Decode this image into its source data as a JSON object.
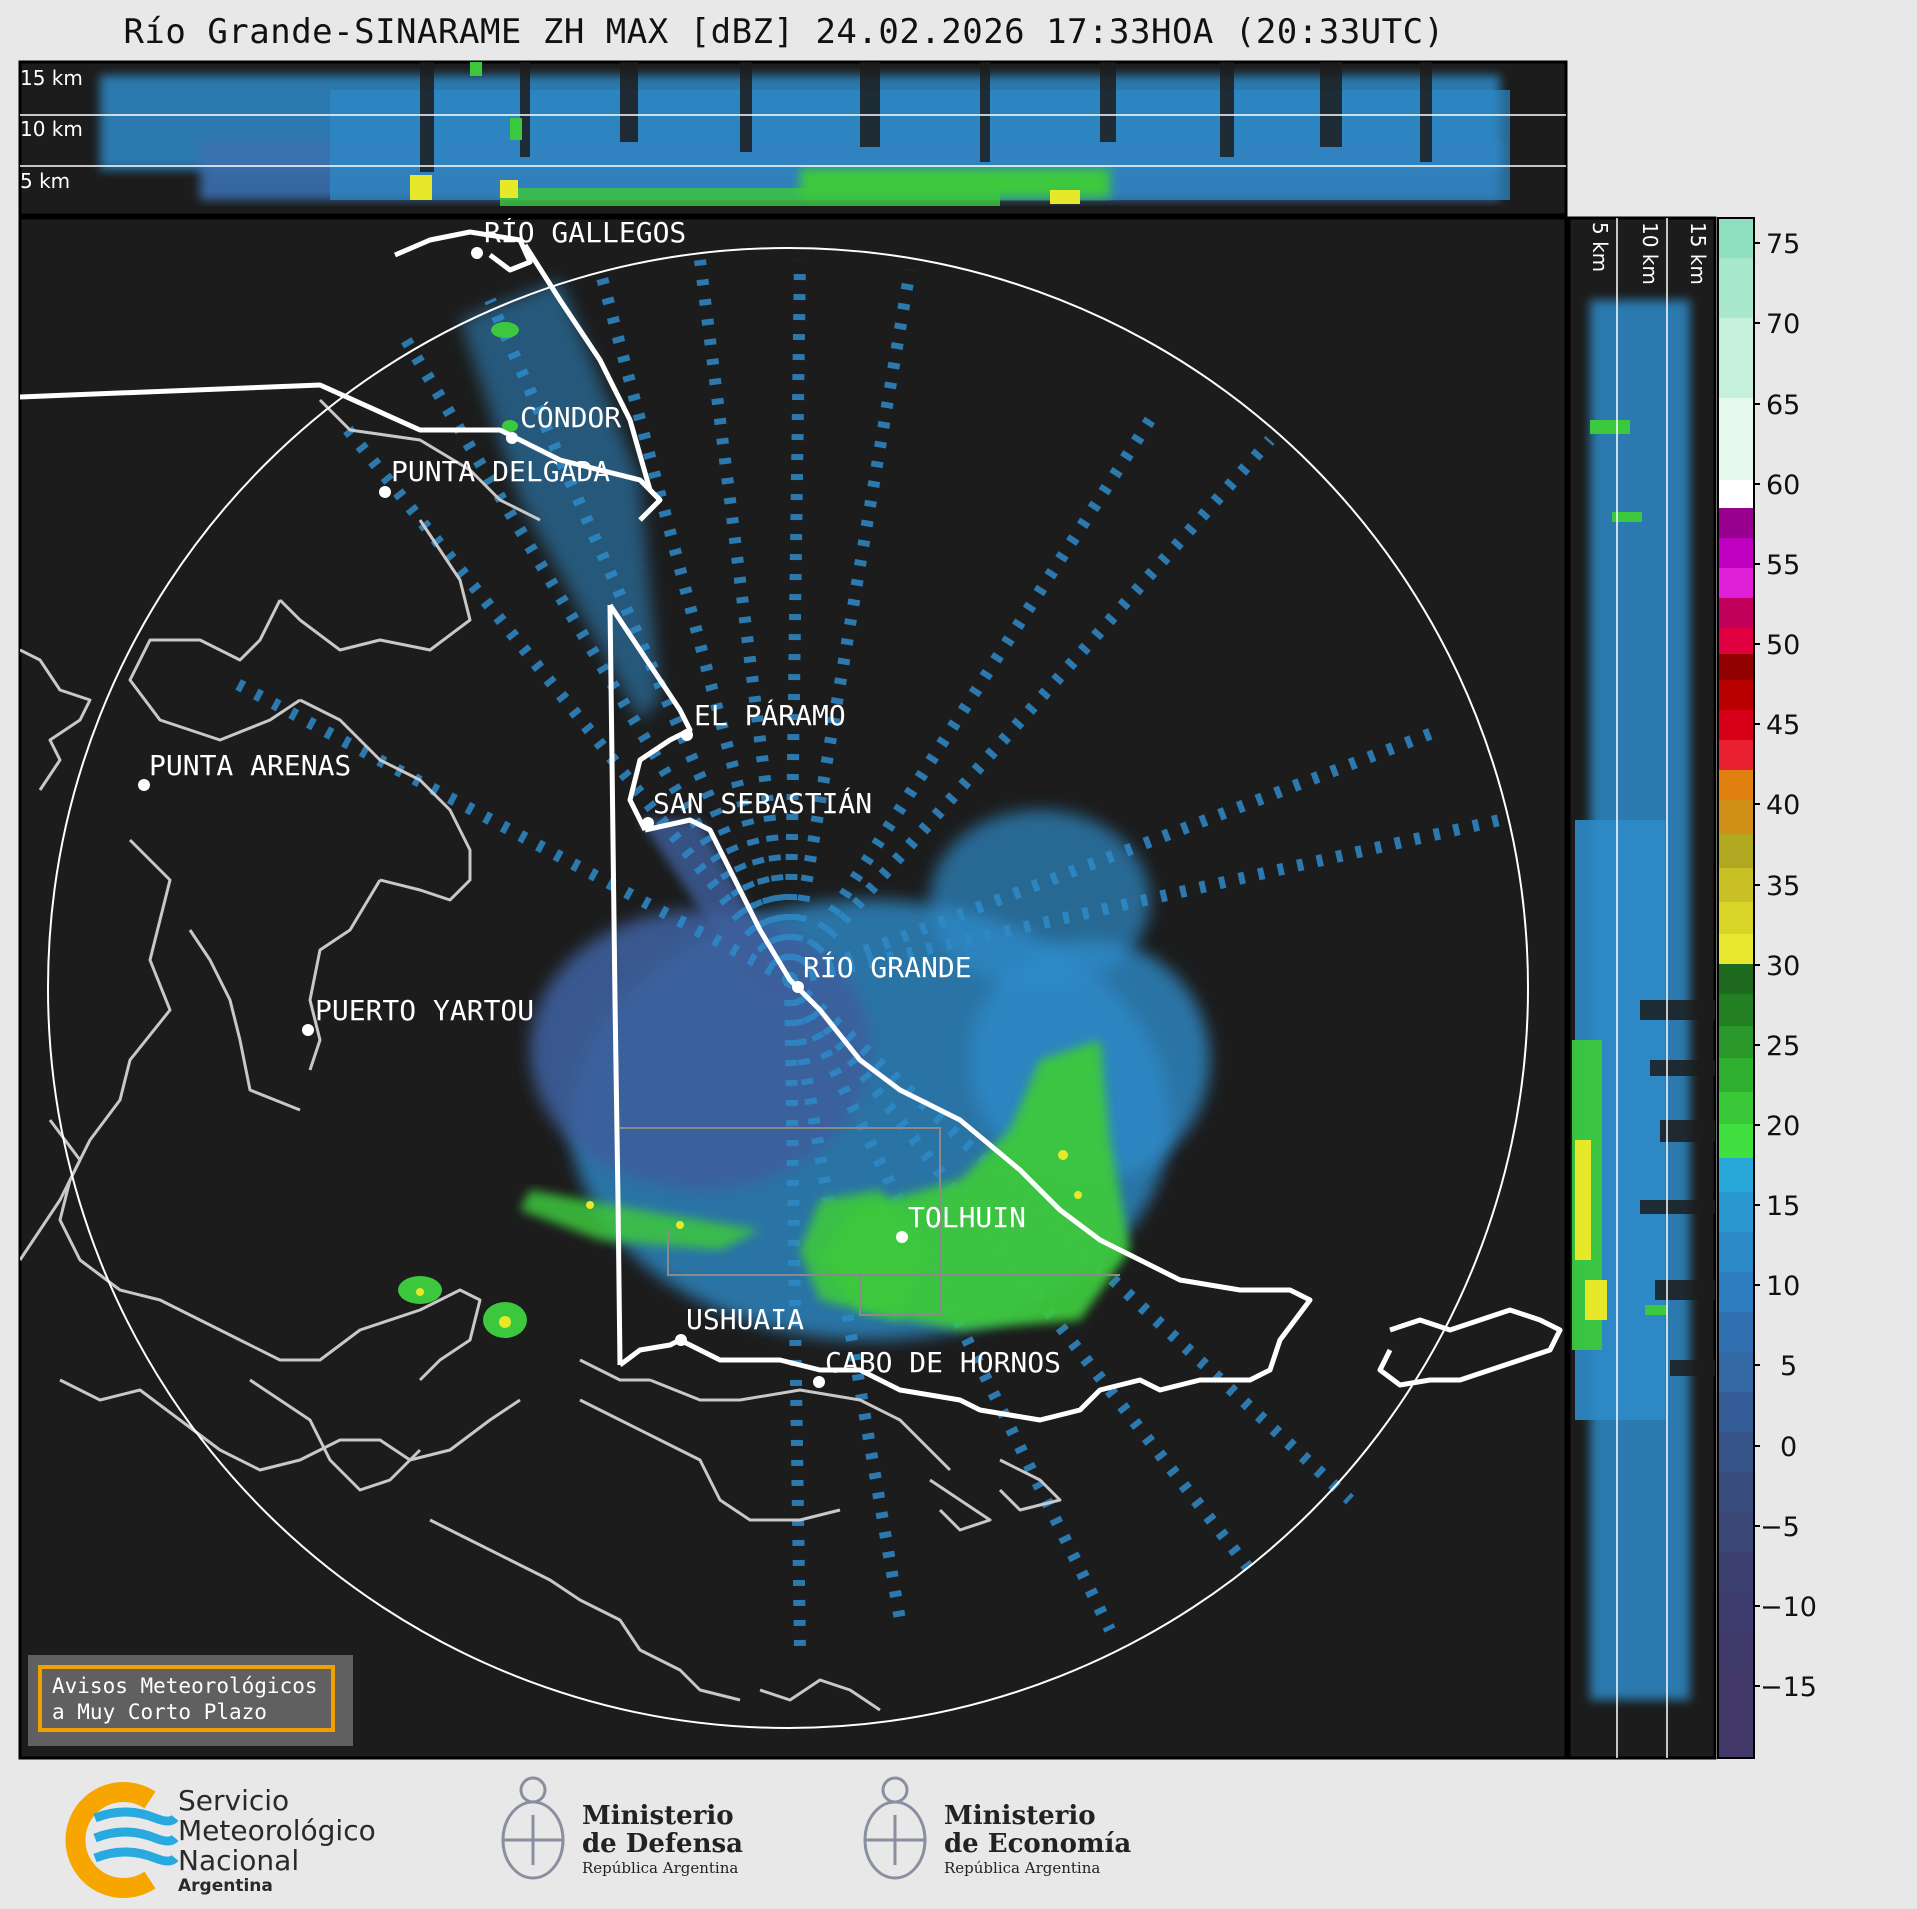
{
  "title": "Río Grande-SINARAME ZH MAX [dBZ] 24.02.2026 17:33HOA (20:33UTC)",
  "top_panel": {
    "height_labels": [
      "15 km",
      "10 km",
      "5 km"
    ]
  },
  "side_panel": {
    "height_labels": [
      "5 km",
      "10 km",
      "15 km"
    ]
  },
  "map": {
    "cities": [
      "RÍO GALLEGOS",
      "CÓNDOR",
      "PUNTA DELGADA",
      "PUNTA ARENAS",
      "EL PÁRAMO",
      "SAN SEBASTIÁN",
      "RÍO GRANDE",
      "PUERTO YARTOU",
      "TOLHUIN",
      "USHUAIA",
      "CABO DE HORNOS"
    ]
  },
  "colorbar": {
    "unit": "dBZ",
    "ticks": [
      "75",
      "70",
      "65",
      "60",
      "55",
      "50",
      "45",
      "40",
      "35",
      "30",
      "25",
      "20",
      "15",
      "10",
      "5",
      "0",
      "−5",
      "−10",
      "−15"
    ],
    "range": [
      -20,
      77
    ]
  },
  "warning_box": {
    "line1": "Avisos Meteorológicos",
    "line2": "a Muy Corto Plazo"
  },
  "logos": {
    "smn": {
      "line1": "Servicio",
      "line2": "Meteorológico",
      "line3": "Nacional",
      "line4": "Argentina"
    },
    "defensa": {
      "line1": "Ministerio",
      "line2": "de Defensa",
      "line3": "República Argentina"
    },
    "economia": {
      "line1": "Ministerio",
      "line2": "de Economía",
      "line3": "República Argentina"
    }
  },
  "colors": {
    "background": "#e8e8e8",
    "panel": "#1c1c1c",
    "echo_light": "#2e8ac8",
    "echo_weak": "#3d5f9c",
    "echo_mid": "#3cc83c",
    "echo_strong": "#e8e82a",
    "warning_border": "#f0a000"
  }
}
